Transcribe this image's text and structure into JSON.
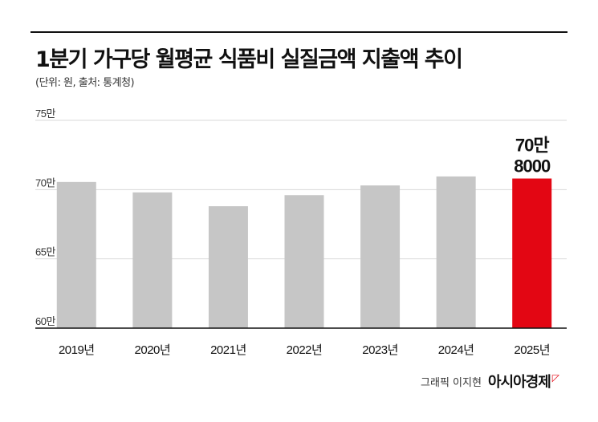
{
  "header": {
    "title": "1분기 가구당 월평균 식품비 실질금액 지출액 추이",
    "subtitle": "(단위: 원, 출처: 통계청)"
  },
  "credit": {
    "text": "그래픽 이지현",
    "brand": "아시아경제"
  },
  "colors": {
    "bar": "#c6c6c6",
    "highlight": "#e30613",
    "grid": "#d9d9d9",
    "axis": "#111111",
    "text": "#111111"
  },
  "chart_data": {
    "type": "bar",
    "title": "1분기 가구당 월평균 식품비 실질금액 지출액 추이",
    "categories": [
      "2019년",
      "2020년",
      "2021년",
      "2022년",
      "2023년",
      "2024년",
      "2025년"
    ],
    "values": [
      705500,
      698000,
      688000,
      696000,
      703000,
      709500,
      708000
    ],
    "ylim": [
      600000,
      750000
    ],
    "yticks": [
      {
        "value": 750000,
        "label": "75만"
      },
      {
        "value": 700000,
        "label": "70만"
      },
      {
        "value": 650000,
        "label": "65만"
      },
      {
        "value": 600000,
        "label": "60만"
      }
    ],
    "highlight_index": 6,
    "annotation": {
      "line1": "70만",
      "line2": "8000"
    },
    "grid": true
  }
}
